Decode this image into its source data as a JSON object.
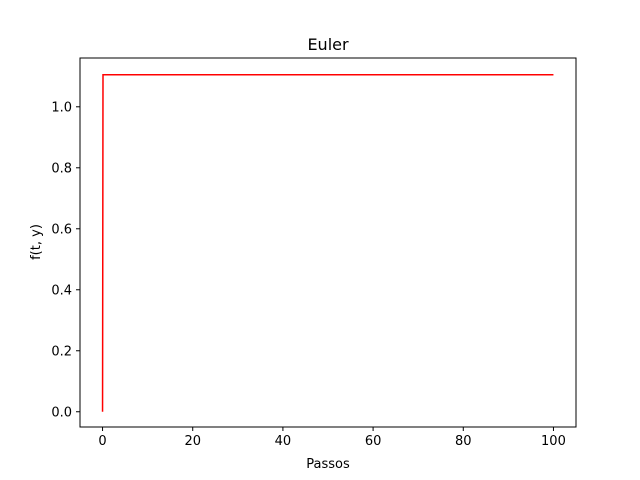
{
  "chart_data": {
    "type": "line",
    "title": "Euler",
    "xlabel": "Passos",
    "ylabel": "f(t, y)",
    "xlim": [
      -5,
      105
    ],
    "ylim": [
      -0.05,
      1.16
    ],
    "xticks": [
      0,
      20,
      40,
      60,
      80,
      100
    ],
    "xtick_labels": [
      "0",
      "20",
      "40",
      "60",
      "80",
      "100"
    ],
    "yticks": [
      0.0,
      0.2,
      0.4,
      0.6,
      0.8,
      1.0
    ],
    "ytick_labels": [
      "0.0",
      "0.2",
      "0.4",
      "0.6",
      "0.8",
      "1.0"
    ],
    "grid": false,
    "series": [
      {
        "color": "#ff0000",
        "x": [
          0,
          0.1,
          1,
          2,
          5,
          10,
          20,
          40,
          60,
          80,
          100
        ],
        "y": [
          0.0,
          1.105,
          1.105,
          1.105,
          1.105,
          1.105,
          1.105,
          1.105,
          1.105,
          1.105,
          1.105
        ]
      }
    ]
  }
}
